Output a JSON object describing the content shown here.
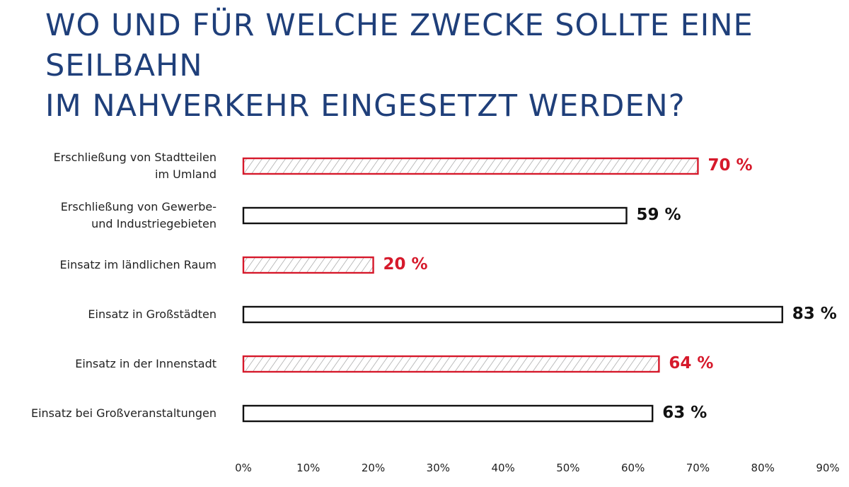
{
  "chart_data": {
    "type": "bar",
    "orientation": "horizontal",
    "title": [
      "WO UND FÜR WELCHE ZWECKE SOLLTE EINE SEILBAHN",
      "IM NAHVERKEHR EINGESETZT WERDEN?"
    ],
    "categories": [
      [
        "Erschließung von Stadtteilen",
        "im Umland"
      ],
      [
        "Erschließung von Gewerbe-",
        "und Industriegebieten"
      ],
      [
        "Einsatz im ländlichen Raum"
      ],
      [
        "Einsatz in Großstädten"
      ],
      [
        "Einsatz in der Innenstadt"
      ],
      [
        "Einsatz bei Großveranstaltungen"
      ]
    ],
    "values": [
      70,
      59,
      20,
      83,
      64,
      63
    ],
    "value_labels": [
      "70 %",
      "59 %",
      "20 %",
      "83 %",
      "64 %",
      "63 %"
    ],
    "styles": [
      "hatched-red",
      "outline-black",
      "hatched-red",
      "outline-black",
      "hatched-red",
      "outline-black"
    ],
    "xlim": [
      0,
      90
    ],
    "x_ticks": [
      "0%",
      "10%",
      "20%",
      "30%",
      "40%",
      "50%",
      "60%",
      "70%",
      "80%",
      "90%"
    ],
    "grid": false,
    "colors": {
      "title": "#1f3f7a",
      "accent_red": "#d6192b",
      "outline": "#111111",
      "hatch": "#9a9a9a"
    }
  }
}
